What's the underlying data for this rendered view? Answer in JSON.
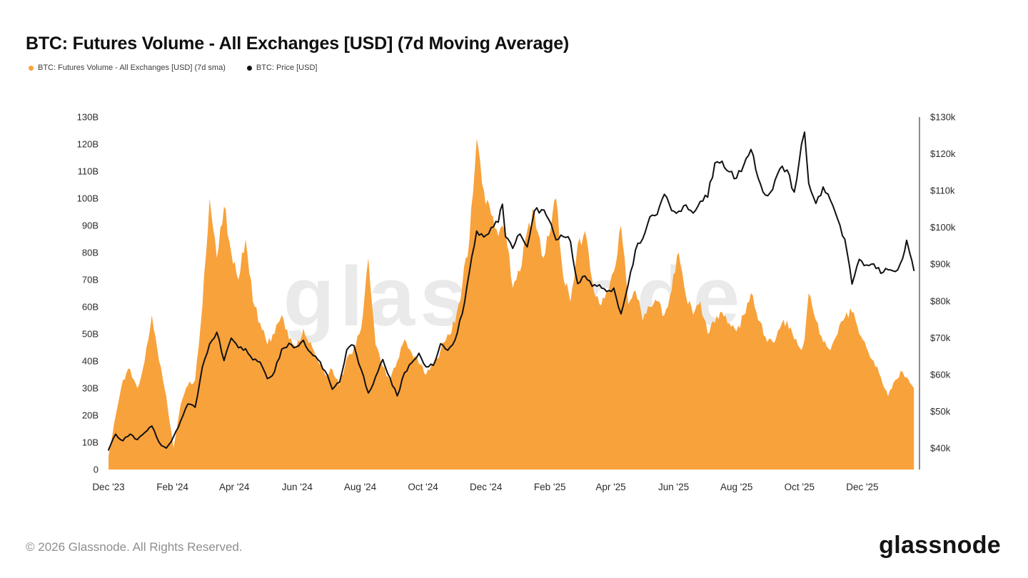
{
  "page": {
    "title": "BTC: Futures Volume - All Exchanges [USD] (7d Moving Average)",
    "watermark": "glassnode",
    "footer_copyright": "© 2026 Glassnode. All Rights Reserved.",
    "brand_logo": "glassnode"
  },
  "legend": {
    "items": [
      {
        "label": "BTC: Futures Volume - All Exchanges [USD] (7d sma)",
        "color": "#f8a23c"
      },
      {
        "label": "BTC: Price [USD]",
        "color": "#111111"
      }
    ]
  },
  "chart_data": {
    "type": "area+line",
    "title": "BTC: Futures Volume - All Exchanges [USD] (7d Moving Average)",
    "legend_position": "top-left",
    "grid": false,
    "x_range": [
      "2023-12-01",
      "2026-01-23"
    ],
    "x_ticks": [
      {
        "date": "2023-12-01",
        "label": "Dec '23"
      },
      {
        "date": "2024-02-01",
        "label": "Feb '24"
      },
      {
        "date": "2024-04-01",
        "label": "Apr '24"
      },
      {
        "date": "2024-06-01",
        "label": "Jun '24"
      },
      {
        "date": "2024-08-01",
        "label": "Aug '24"
      },
      {
        "date": "2024-10-01",
        "label": "Oct '24"
      },
      {
        "date": "2024-12-01",
        "label": "Dec '24"
      },
      {
        "date": "2025-02-01",
        "label": "Feb '25"
      },
      {
        "date": "2025-04-01",
        "label": "Apr '25"
      },
      {
        "date": "2025-06-01",
        "label": "Jun '25"
      },
      {
        "date": "2025-08-01",
        "label": "Aug '25"
      },
      {
        "date": "2025-10-01",
        "label": "Oct '25"
      },
      {
        "date": "2025-12-01",
        "label": "Dec '25"
      }
    ],
    "left_axis": {
      "title": "Futures Volume (USD)",
      "min": 0,
      "max": 130,
      "ticks": [
        {
          "v": 0,
          "label": "0"
        },
        {
          "v": 10,
          "label": "10B"
        },
        {
          "v": 20,
          "label": "20B"
        },
        {
          "v": 30,
          "label": "30B"
        },
        {
          "v": 40,
          "label": "40B"
        },
        {
          "v": 50,
          "label": "50B"
        },
        {
          "v": 60,
          "label": "60B"
        },
        {
          "v": 70,
          "label": "70B"
        },
        {
          "v": 80,
          "label": "80B"
        },
        {
          "v": 90,
          "label": "90B"
        },
        {
          "v": 100,
          "label": "100B"
        },
        {
          "v": 110,
          "label": "110B"
        },
        {
          "v": 120,
          "label": "120B"
        },
        {
          "v": 130,
          "label": "130B"
        }
      ]
    },
    "right_axis": {
      "title": "BTC Price (USD)",
      "min": 40,
      "max": 130,
      "ticks": [
        {
          "v": 40,
          "label": "$40k"
        },
        {
          "v": 50,
          "label": "$50k"
        },
        {
          "v": 60,
          "label": "$60k"
        },
        {
          "v": 70,
          "label": "$70k"
        },
        {
          "v": 80,
          "label": "$80k"
        },
        {
          "v": 90,
          "label": "$90k"
        },
        {
          "v": 100,
          "label": "$100k"
        },
        {
          "v": 110,
          "label": "$110k"
        },
        {
          "v": 120,
          "label": "$120k"
        },
        {
          "v": 130,
          "label": "$130k"
        }
      ]
    },
    "x": [
      "2023-12-01",
      "2023-12-08",
      "2023-12-15",
      "2023-12-22",
      "2023-12-29",
      "2024-01-05",
      "2024-01-12",
      "2024-01-19",
      "2024-01-26",
      "2024-02-02",
      "2024-02-09",
      "2024-02-16",
      "2024-02-23",
      "2024-03-01",
      "2024-03-08",
      "2024-03-15",
      "2024-03-22",
      "2024-03-29",
      "2024-04-05",
      "2024-04-12",
      "2024-04-19",
      "2024-04-26",
      "2024-05-03",
      "2024-05-10",
      "2024-05-17",
      "2024-05-24",
      "2024-05-31",
      "2024-06-07",
      "2024-06-14",
      "2024-06-21",
      "2024-06-28",
      "2024-07-05",
      "2024-07-12",
      "2024-07-19",
      "2024-07-26",
      "2024-08-02",
      "2024-08-09",
      "2024-08-16",
      "2024-08-23",
      "2024-08-30",
      "2024-09-06",
      "2024-09-13",
      "2024-09-20",
      "2024-09-27",
      "2024-10-04",
      "2024-10-11",
      "2024-10-18",
      "2024-10-25",
      "2024-11-01",
      "2024-11-08",
      "2024-11-15",
      "2024-11-22",
      "2024-11-29",
      "2024-12-06",
      "2024-12-13",
      "2024-12-17",
      "2024-12-20",
      "2024-12-27",
      "2025-01-03",
      "2025-01-10",
      "2025-01-17",
      "2025-01-24",
      "2025-01-31",
      "2025-02-07",
      "2025-02-14",
      "2025-02-21",
      "2025-02-28",
      "2025-03-07",
      "2025-03-14",
      "2025-03-21",
      "2025-03-28",
      "2025-04-04",
      "2025-04-11",
      "2025-04-18",
      "2025-04-25",
      "2025-05-02",
      "2025-05-09",
      "2025-05-16",
      "2025-05-23",
      "2025-05-30",
      "2025-06-06",
      "2025-06-13",
      "2025-06-20",
      "2025-06-27",
      "2025-07-04",
      "2025-07-11",
      "2025-07-18",
      "2025-07-25",
      "2025-08-01",
      "2025-08-08",
      "2025-08-15",
      "2025-08-22",
      "2025-08-29",
      "2025-09-05",
      "2025-09-12",
      "2025-09-19",
      "2025-09-26",
      "2025-10-03",
      "2025-10-06",
      "2025-10-10",
      "2025-10-17",
      "2025-10-24",
      "2025-10-31",
      "2025-11-07",
      "2025-11-14",
      "2025-11-21",
      "2025-11-28",
      "2025-12-05",
      "2025-12-12",
      "2025-12-19",
      "2025-12-26",
      "2026-01-02",
      "2026-01-09",
      "2026-01-13",
      "2026-01-16",
      "2026-01-20"
    ],
    "series": [
      {
        "name": "BTC: Futures Volume - All Exchanges [USD] (7d sma)",
        "style": "area",
        "axis": "left",
        "unit": "USD billions",
        "color": "#f8a23c",
        "values": [
          5,
          20,
          33,
          37,
          30,
          40,
          57,
          40,
          27,
          8,
          24,
          31,
          33,
          60,
          100,
          78,
          97,
          80,
          70,
          85,
          62,
          54,
          46,
          50,
          57,
          48,
          45,
          52,
          47,
          40,
          35,
          37,
          31,
          41,
          45,
          52,
          78,
          46,
          38,
          33,
          40,
          48,
          43,
          39,
          35,
          39,
          44,
          50,
          54,
          68,
          85,
          122,
          103,
          94,
          86,
          90,
          88,
          67,
          73,
          88,
          95,
          79,
          86,
          100,
          71,
          62,
          83,
          88,
          70,
          61,
          66,
          73,
          90,
          61,
          66,
          55,
          60,
          62,
          57,
          66,
          80,
          64,
          57,
          62,
          50,
          54,
          58,
          54,
          51,
          57,
          65,
          55,
          49,
          47,
          52,
          55,
          48,
          44,
          48,
          65,
          55,
          47,
          44,
          50,
          56,
          58,
          50,
          45,
          40,
          34,
          27,
          33,
          36,
          34,
          32,
          30
        ]
      },
      {
        "name": "BTC: Price [USD]",
        "style": "line",
        "axis": "right",
        "unit": "USD thousands",
        "color": "#111111",
        "values": [
          39.5,
          43.8,
          42.0,
          43.8,
          42.3,
          44.2,
          46.0,
          41.6,
          40.0,
          43.1,
          47.4,
          52.0,
          51.1,
          62.0,
          68.3,
          71.5,
          63.8,
          69.9,
          67.3,
          67.0,
          64.0,
          63.4,
          58.9,
          60.8,
          66.9,
          68.5,
          67.5,
          69.3,
          66.0,
          64.1,
          61.0,
          56.0,
          57.9,
          66.7,
          67.9,
          61.4,
          55.0,
          59.4,
          64.1,
          59.1,
          54.2,
          60.5,
          63.2,
          65.8,
          62.1,
          62.5,
          68.4,
          66.6,
          69.4,
          76.5,
          88.0,
          99.0,
          97.4,
          99.9,
          101.4,
          106.3,
          97.5,
          94.3,
          98.2,
          94.7,
          104.5,
          104.8,
          102.1,
          96.6,
          97.5,
          96.2,
          84.7,
          86.8,
          84.0,
          84.4,
          82.6,
          83.5,
          76.5,
          84.5,
          93.8,
          96.9,
          102.9,
          103.5,
          109.0,
          104.6,
          104.4,
          106.1,
          103.9,
          107.1,
          108.2,
          117.5,
          118.0,
          115.1,
          113.4,
          116.9,
          121.2,
          113.4,
          108.8,
          110.3,
          115.9,
          115.6,
          109.6,
          122.6,
          125.9,
          112.0,
          106.5,
          111.0,
          107.4,
          102.3,
          96.8,
          84.6,
          91.3,
          89.8,
          90.1,
          87.5,
          88.5,
          88.0,
          91.5,
          96.5,
          93.0,
          88.3
        ]
      }
    ]
  }
}
